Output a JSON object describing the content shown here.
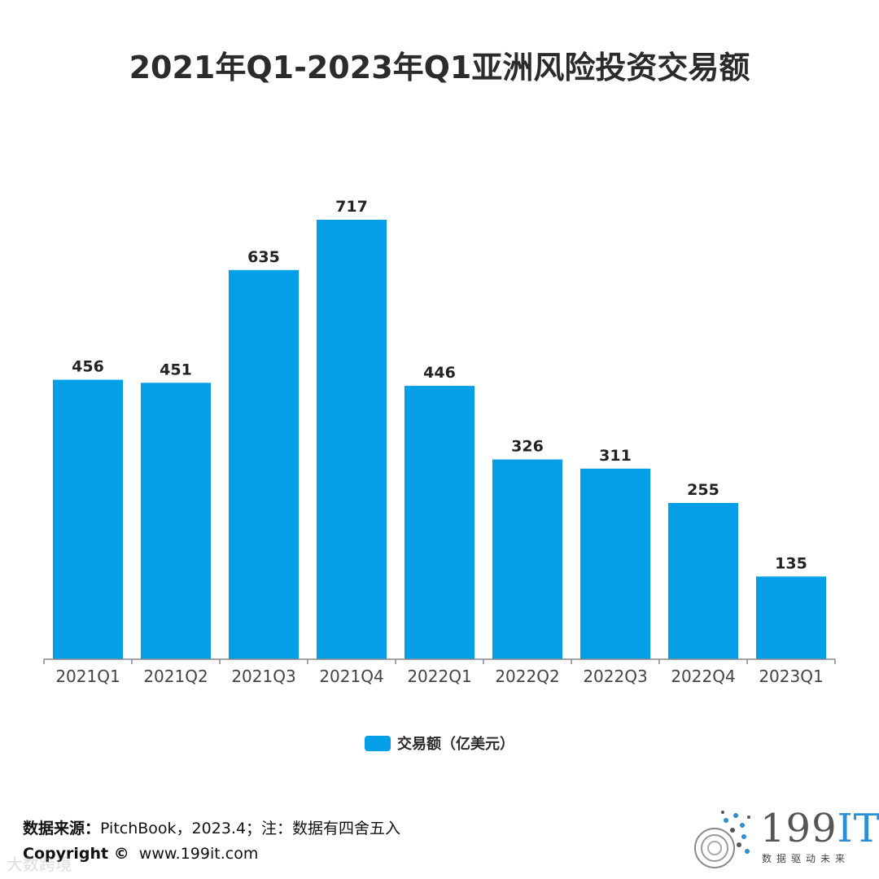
{
  "chart_data": {
    "type": "bar",
    "title": "2021年Q1-2023年Q1亚洲风险投资交易额",
    "categories": [
      "2021Q1",
      "2021Q2",
      "2021Q3",
      "2021Q4",
      "2022Q1",
      "2022Q2",
      "2022Q3",
      "2022Q4",
      "2023Q1"
    ],
    "series": [
      {
        "name": "交易额（亿美元）",
        "values": [
          456,
          451,
          635,
          717,
          446,
          326,
          311,
          255,
          135
        ]
      }
    ],
    "xlabel": "",
    "ylabel": "",
    "ylim": [
      0,
      717
    ],
    "grid": false,
    "legend_position": "bottom-center",
    "bar_color": "#049fe6",
    "data_labels": true
  },
  "footer": {
    "source_label": "数据来源：",
    "source_text": "PitchBook，2023.4；注：数据有四舍五入",
    "copyright_label": "Copyright ©",
    "copyright_text": "www.199it.com"
  },
  "watermark": "大数跨境",
  "logo": {
    "num": "199",
    "it": "IT",
    "slogan": "数据驱动未来"
  }
}
